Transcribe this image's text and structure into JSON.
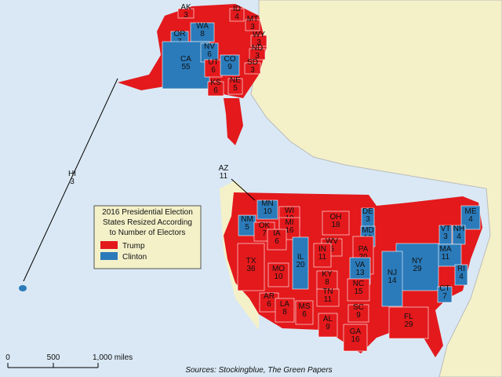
{
  "title_lines": [
    "2016 Presidential Election",
    "States Resized According",
    "to Number of Electors"
  ],
  "legend": [
    {
      "label": "Trump",
      "color": "#e3191c"
    },
    {
      "label": "Clinton",
      "color": "#2b7bba"
    }
  ],
  "states": [
    {
      "abbr": "AK",
      "electors": 3,
      "party": 0
    },
    {
      "abbr": "WA",
      "electors": 8,
      "party": 1
    },
    {
      "abbr": "OR",
      "electors": 7,
      "party": 1
    },
    {
      "abbr": "ID",
      "electors": 4,
      "party": 0
    },
    {
      "abbr": "MT",
      "electors": 3,
      "party": 0
    },
    {
      "abbr": "WY",
      "electors": 3,
      "party": 0
    },
    {
      "abbr": "ND",
      "electors": 3,
      "party": 0
    },
    {
      "abbr": "SD",
      "electors": 3,
      "party": 0
    },
    {
      "abbr": "NE",
      "electors": 5,
      "party": 0
    },
    {
      "abbr": "CA",
      "electors": 55,
      "party": 1
    },
    {
      "abbr": "NV",
      "electors": 6,
      "party": 1
    },
    {
      "abbr": "UT",
      "electors": 6,
      "party": 0
    },
    {
      "abbr": "CO",
      "electors": 9,
      "party": 1
    },
    {
      "abbr": "KS",
      "electors": 6,
      "party": 0
    },
    {
      "abbr": "AZ",
      "electors": 11,
      "party": 0
    },
    {
      "abbr": "HI",
      "electors": 3,
      "party": 1
    },
    {
      "abbr": "MN",
      "electors": 10,
      "party": 1
    },
    {
      "abbr": "WI",
      "electors": 10,
      "party": 0
    },
    {
      "abbr": "NM",
      "electors": 5,
      "party": 1
    },
    {
      "abbr": "OK",
      "electors": 7,
      "party": 0
    },
    {
      "abbr": "MI",
      "electors": 16,
      "party": 0
    },
    {
      "abbr": "OH",
      "electors": 18,
      "party": 0
    },
    {
      "abbr": "DE",
      "electors": 3,
      "party": 1
    },
    {
      "abbr": "MD",
      "electors": 10,
      "party": 1
    },
    {
      "abbr": "IA",
      "electors": 6,
      "party": 0
    },
    {
      "abbr": "WV",
      "electors": 5,
      "party": 0
    },
    {
      "abbr": "PA",
      "electors": 20,
      "party": 0
    },
    {
      "abbr": "TX",
      "electors": 36,
      "party": 0
    },
    {
      "abbr": "IL",
      "electors": 20,
      "party": 1
    },
    {
      "abbr": "IN",
      "electors": 11,
      "party": 0
    },
    {
      "abbr": "VA",
      "electors": 13,
      "party": 1
    },
    {
      "abbr": "MO",
      "electors": 10,
      "party": 0
    },
    {
      "abbr": "KY",
      "electors": 8,
      "party": 0
    },
    {
      "abbr": "ME",
      "electors": 4,
      "party": 1
    },
    {
      "abbr": "VT",
      "electors": 3,
      "party": 1
    },
    {
      "abbr": "NH",
      "electors": 4,
      "party": 1
    },
    {
      "abbr": "MA",
      "electors": 11,
      "party": 1
    },
    {
      "abbr": "RI",
      "electors": 4,
      "party": 1
    },
    {
      "abbr": "NY",
      "electors": 29,
      "party": 1
    },
    {
      "abbr": "CT",
      "electors": 7,
      "party": 1
    },
    {
      "abbr": "NJ",
      "electors": 14,
      "party": 1
    },
    {
      "abbr": "NC",
      "electors": 15,
      "party": 0
    },
    {
      "abbr": "TN",
      "electors": 11,
      "party": 0
    },
    {
      "abbr": "AR",
      "electors": 6,
      "party": 0
    },
    {
      "abbr": "LA",
      "electors": 8,
      "party": 0
    },
    {
      "abbr": "MS",
      "electors": 6,
      "party": 0
    },
    {
      "abbr": "SC",
      "electors": 9,
      "party": 0
    },
    {
      "abbr": "AL",
      "electors": 9,
      "party": 0
    },
    {
      "abbr": "GA",
      "electors": 16,
      "party": 0
    },
    {
      "abbr": "FL",
      "electors": 29,
      "party": 0
    }
  ],
  "scale": {
    "labels": [
      "0",
      "500",
      "1,000 miles"
    ]
  },
  "source": "Sources: Stockingblue, The Green Papers"
}
